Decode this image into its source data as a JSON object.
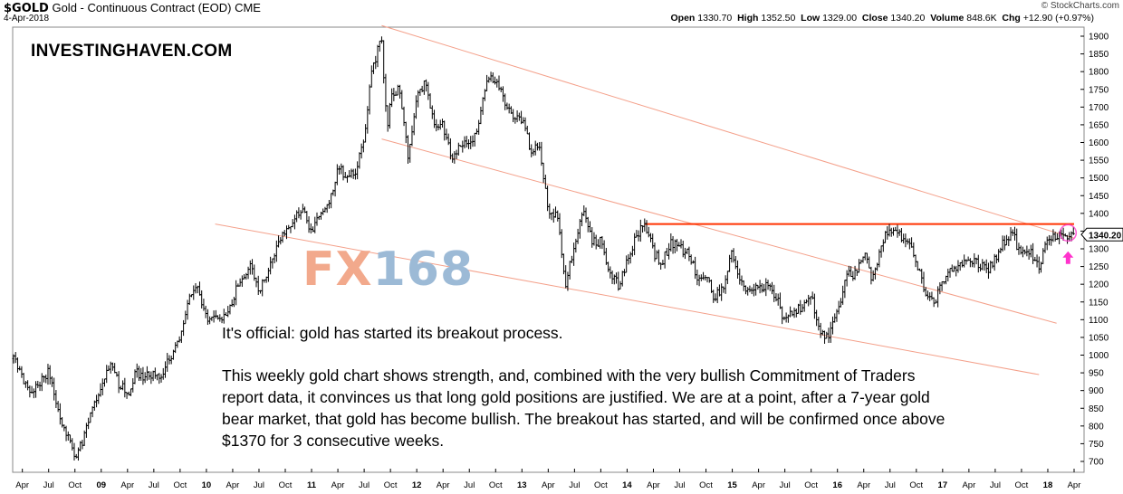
{
  "header": {
    "symbol": "$GOLD",
    "description": "Gold - Continuous Contract (EOD)",
    "exchange": "CME",
    "date": "4-Apr-2018",
    "open_label": "Open",
    "open": "1330.70",
    "high_label": "High",
    "high": "1352.50",
    "low_label": "Low",
    "low": "1329.00",
    "close_label": "Close",
    "close": "1340.20",
    "volume_label": "Volume",
    "volume": "848.6K",
    "chg_label": "Chg",
    "chg": "+12.90 (+0.97%)",
    "source": "© StockCharts.com"
  },
  "brand": "INVESTINGHAVEN.COM",
  "watermark": {
    "part1": "FX",
    "part2": "168"
  },
  "notes": {
    "line1": "It's official: gold has started its breakout process.",
    "line2": "This weekly gold chart shows strength, and, combined with the very bullish Commitment of Traders report data, it convinces us that long gold positions are justified. We are at a point, after a 7-year gold bear market, that gold has become bullish. The breakout has started, and will be confirmed once above $1370 for 3 consecutive weeks."
  },
  "colors": {
    "price_bar": "#000000",
    "channel": "#f4a08a",
    "resistance": "#ff3300",
    "marker": "#ff33cc",
    "last_price_box": "#ffffff"
  },
  "chart_data": {
    "type": "line",
    "title": "Gold - Continuous Contract (EOD)",
    "price_style": "weekly OHLC bars",
    "ylim": [
      680,
      1930
    ],
    "y_ticks": [
      700,
      750,
      800,
      850,
      900,
      950,
      1000,
      1050,
      1100,
      1150,
      1200,
      1250,
      1300,
      1350,
      1400,
      1450,
      1500,
      1550,
      1600,
      1650,
      1700,
      1750,
      1800,
      1850,
      1900
    ],
    "x_range": [
      "2008-03",
      "2018-04"
    ],
    "x_ticks": [
      {
        "date": "2008-04",
        "label": "Apr"
      },
      {
        "date": "2008-07",
        "label": "Jul"
      },
      {
        "date": "2008-10",
        "label": "Oct"
      },
      {
        "date": "2009-01",
        "label": "09",
        "major": true
      },
      {
        "date": "2009-04",
        "label": "Apr"
      },
      {
        "date": "2009-07",
        "label": "Jul"
      },
      {
        "date": "2009-10",
        "label": "Oct"
      },
      {
        "date": "2010-01",
        "label": "10",
        "major": true
      },
      {
        "date": "2010-04",
        "label": "Apr"
      },
      {
        "date": "2010-07",
        "label": "Jul"
      },
      {
        "date": "2010-10",
        "label": "Oct"
      },
      {
        "date": "2011-01",
        "label": "11",
        "major": true
      },
      {
        "date": "2011-04",
        "label": "Apr"
      },
      {
        "date": "2011-07",
        "label": "Jul"
      },
      {
        "date": "2011-10",
        "label": "Oct"
      },
      {
        "date": "2012-01",
        "label": "12",
        "major": true
      },
      {
        "date": "2012-04",
        "label": "Apr"
      },
      {
        "date": "2012-07",
        "label": "Jul"
      },
      {
        "date": "2012-10",
        "label": "Oct"
      },
      {
        "date": "2013-01",
        "label": "13",
        "major": true
      },
      {
        "date": "2013-04",
        "label": "Apr"
      },
      {
        "date": "2013-07",
        "label": "Jul"
      },
      {
        "date": "2013-10",
        "label": "Oct"
      },
      {
        "date": "2014-01",
        "label": "14",
        "major": true
      },
      {
        "date": "2014-04",
        "label": "Apr"
      },
      {
        "date": "2014-07",
        "label": "Jul"
      },
      {
        "date": "2014-10",
        "label": "Oct"
      },
      {
        "date": "2015-01",
        "label": "15",
        "major": true
      },
      {
        "date": "2015-04",
        "label": "Apr"
      },
      {
        "date": "2015-07",
        "label": "Jul"
      },
      {
        "date": "2015-10",
        "label": "Oct"
      },
      {
        "date": "2016-01",
        "label": "16",
        "major": true
      },
      {
        "date": "2016-04",
        "label": "Apr"
      },
      {
        "date": "2016-07",
        "label": "Jul"
      },
      {
        "date": "2016-10",
        "label": "Oct"
      },
      {
        "date": "2017-01",
        "label": "17",
        "major": true
      },
      {
        "date": "2017-04",
        "label": "Apr"
      },
      {
        "date": "2017-07",
        "label": "Jul"
      },
      {
        "date": "2017-10",
        "label": "Oct"
      },
      {
        "date": "2018-01",
        "label": "18",
        "major": true
      },
      {
        "date": "2018-04",
        "label": "Apr"
      }
    ],
    "series": [
      {
        "price_path": [
          [
            "2008-03",
            990
          ],
          [
            "2008-04",
            930
          ],
          [
            "2008-05",
            890
          ],
          [
            "2008-06",
            920
          ],
          [
            "2008-07",
            960
          ],
          [
            "2008-08",
            840
          ],
          [
            "2008-09",
            780
          ],
          [
            "2008-10",
            720
          ],
          [
            "2008-11",
            760
          ],
          [
            "2008-12",
            860
          ],
          [
            "2009-01",
            900
          ],
          [
            "2009-02",
            980
          ],
          [
            "2009-03",
            920
          ],
          [
            "2009-04",
            890
          ],
          [
            "2009-05",
            950
          ],
          [
            "2009-06",
            940
          ],
          [
            "2009-07",
            940
          ],
          [
            "2009-08",
            950
          ],
          [
            "2009-09",
            1000
          ],
          [
            "2009-10",
            1050
          ],
          [
            "2009-11",
            1150
          ],
          [
            "2009-12",
            1200
          ],
          [
            "2010-01",
            1100
          ],
          [
            "2010-02",
            1110
          ],
          [
            "2010-03",
            1110
          ],
          [
            "2010-04",
            1160
          ],
          [
            "2010-05",
            1220
          ],
          [
            "2010-06",
            1250
          ],
          [
            "2010-07",
            1180
          ],
          [
            "2010-08",
            1230
          ],
          [
            "2010-09",
            1300
          ],
          [
            "2010-10",
            1350
          ],
          [
            "2010-11",
            1380
          ],
          [
            "2010-12",
            1410
          ],
          [
            "2011-01",
            1340
          ],
          [
            "2011-02",
            1400
          ],
          [
            "2011-03",
            1430
          ],
          [
            "2011-04",
            1530
          ],
          [
            "2011-05",
            1500
          ],
          [
            "2011-06",
            1520
          ],
          [
            "2011-07",
            1620
          ],
          [
            "2011-08",
            1820
          ],
          [
            "2011-09",
            1890
          ],
          [
            "2011-09-20",
            1620
          ],
          [
            "2011-10",
            1720
          ],
          [
            "2011-11",
            1750
          ],
          [
            "2011-12",
            1560
          ],
          [
            "2012-01",
            1720
          ],
          [
            "2012-02",
            1770
          ],
          [
            "2012-03",
            1660
          ],
          [
            "2012-04",
            1650
          ],
          [
            "2012-05",
            1550
          ],
          [
            "2012-06",
            1600
          ],
          [
            "2012-07",
            1590
          ],
          [
            "2012-08",
            1650
          ],
          [
            "2012-09",
            1770
          ],
          [
            "2012-10",
            1780
          ],
          [
            "2012-11",
            1720
          ],
          [
            "2012-12",
            1660
          ],
          [
            "2013-01",
            1670
          ],
          [
            "2013-02",
            1580
          ],
          [
            "2013-03",
            1600
          ],
          [
            "2013-04",
            1400
          ],
          [
            "2013-05",
            1390
          ],
          [
            "2013-06",
            1200
          ],
          [
            "2013-07",
            1320
          ],
          [
            "2013-08",
            1410
          ],
          [
            "2013-09",
            1320
          ],
          [
            "2013-10",
            1320
          ],
          [
            "2013-11",
            1240
          ],
          [
            "2013-12",
            1200
          ],
          [
            "2014-01",
            1260
          ],
          [
            "2014-02",
            1330
          ],
          [
            "2014-03",
            1380
          ],
          [
            "2014-04",
            1290
          ],
          [
            "2014-05",
            1260
          ],
          [
            "2014-06",
            1320
          ],
          [
            "2014-07",
            1300
          ],
          [
            "2014-08",
            1290
          ],
          [
            "2014-09",
            1220
          ],
          [
            "2014-10",
            1230
          ],
          [
            "2014-11",
            1160
          ],
          [
            "2014-12",
            1200
          ],
          [
            "2015-01",
            1290
          ],
          [
            "2015-02",
            1210
          ],
          [
            "2015-03",
            1180
          ],
          [
            "2015-04",
            1200
          ],
          [
            "2015-05",
            1190
          ],
          [
            "2015-06",
            1170
          ],
          [
            "2015-07",
            1090
          ],
          [
            "2015-08",
            1130
          ],
          [
            "2015-09",
            1130
          ],
          [
            "2015-10",
            1170
          ],
          [
            "2015-11",
            1060
          ],
          [
            "2015-12",
            1060
          ],
          [
            "2016-01",
            1120
          ],
          [
            "2016-02",
            1230
          ],
          [
            "2016-03",
            1230
          ],
          [
            "2016-04",
            1290
          ],
          [
            "2016-05",
            1210
          ],
          [
            "2016-06",
            1320
          ],
          [
            "2016-07",
            1360
          ],
          [
            "2016-08",
            1340
          ],
          [
            "2016-09",
            1320
          ],
          [
            "2016-10",
            1260
          ],
          [
            "2016-11",
            1180
          ],
          [
            "2016-12",
            1140
          ],
          [
            "2017-01",
            1210
          ],
          [
            "2017-02",
            1250
          ],
          [
            "2017-03",
            1250
          ],
          [
            "2017-04",
            1270
          ],
          [
            "2017-05",
            1260
          ],
          [
            "2017-06",
            1240
          ],
          [
            "2017-07",
            1270
          ],
          [
            "2017-08",
            1320
          ],
          [
            "2017-09",
            1340
          ],
          [
            "2017-10",
            1280
          ],
          [
            "2017-11",
            1290
          ],
          [
            "2017-12",
            1250
          ],
          [
            "2018-01",
            1340
          ],
          [
            "2018-02",
            1330
          ],
          [
            "2018-03",
            1340
          ],
          [
            "2018-04",
            1340
          ]
        ]
      }
    ],
    "overlays": {
      "channel_lines": [
        [
          [
            "2011-09",
            1930
          ],
          [
            "2018-04",
            1330
          ]
        ],
        [
          [
            "2011-09",
            1610
          ],
          [
            "2018-02",
            1090
          ]
        ],
        [
          [
            "2010-02",
            1370
          ],
          [
            "2017-12",
            945
          ]
        ]
      ],
      "resistance": {
        "from": "2014-03",
        "to": "2018-04",
        "value": 1370
      },
      "last_price": {
        "date": "2018-04",
        "value": "1340.20"
      },
      "marker_arrow": {
        "date": "2018-03",
        "value": 1270
      }
    }
  }
}
